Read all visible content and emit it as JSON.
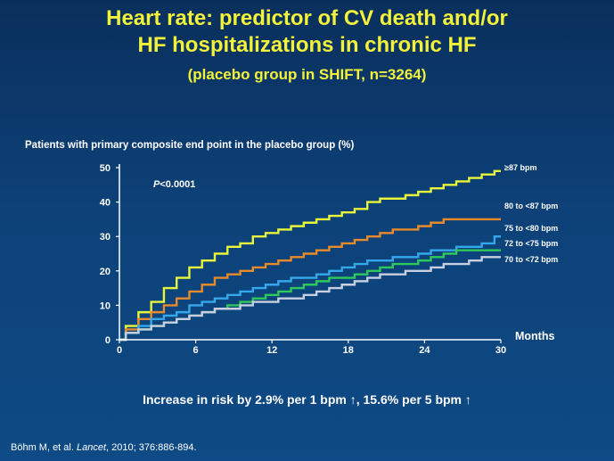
{
  "slide": {
    "title_line1": "Heart rate: predictor of CV death and/or",
    "title_line2": "HF hospitalizations in chronic HF",
    "subtitle": "(placebo group in SHIFT, n=3264)",
    "statement": "Increase in risk by 2.9% per 1 bpm ↑, 15.6% per 5 bpm ↑",
    "citation_authors": "Böhm M, et al. ",
    "citation_journal": "Lancet",
    "citation_rest": ", 2010; 376:886-894."
  },
  "chart_data": {
    "type": "line",
    "ylabel": "Patients with primary composite end point in the placebo group (%)",
    "xlabel": "Months",
    "xlim": [
      0,
      30
    ],
    "ylim": [
      0,
      50
    ],
    "xticks": [
      0,
      6,
      12,
      18,
      24,
      30
    ],
    "yticks": [
      0,
      10,
      20,
      30,
      40,
      50
    ],
    "annotation_prefix": "P",
    "annotation_rest": "<0.0001",
    "series": [
      {
        "name": "≥87 bpm",
        "color": "#e9f53a",
        "x": [
          0,
          1,
          2,
          3,
          4,
          5,
          6,
          7,
          8,
          9,
          10,
          11,
          12,
          13,
          14,
          15,
          16,
          17,
          18,
          19,
          20,
          21,
          22,
          23,
          24,
          25,
          26,
          27,
          28,
          29,
          30
        ],
        "values": [
          0,
          4,
          8,
          11,
          15,
          18,
          21,
          23,
          25,
          27,
          28,
          30,
          31,
          32,
          33,
          34,
          35,
          36,
          37,
          38,
          40,
          41,
          41,
          42,
          43,
          44,
          45,
          46,
          47,
          48,
          49
        ]
      },
      {
        "name": "80 to <87 bpm",
        "color": "#e88a2a",
        "x": [
          0,
          1,
          2,
          3,
          4,
          5,
          6,
          7,
          8,
          9,
          10,
          11,
          12,
          13,
          14,
          15,
          16,
          17,
          18,
          19,
          20,
          21,
          22,
          23,
          24,
          25,
          26,
          27,
          28,
          29,
          30
        ],
        "values": [
          0,
          3,
          6,
          8,
          10,
          12,
          14,
          16,
          18,
          19,
          20,
          21,
          22,
          23,
          24,
          25,
          26,
          27,
          28,
          29,
          30,
          31,
          32,
          32,
          33,
          34,
          35,
          35,
          35,
          35,
          35
        ]
      },
      {
        "name": "75 to <80 bpm",
        "color": "#35a8ec",
        "x": [
          0,
          1,
          2,
          3,
          4,
          5,
          6,
          7,
          8,
          9,
          10,
          11,
          12,
          13,
          14,
          15,
          16,
          17,
          18,
          19,
          20,
          21,
          22,
          23,
          24,
          25,
          26,
          27,
          28,
          29,
          30
        ],
        "values": [
          0,
          2,
          4,
          6,
          7,
          8,
          10,
          11,
          12,
          13,
          14,
          15,
          16,
          17,
          18,
          18,
          19,
          20,
          21,
          22,
          23,
          23,
          24,
          24,
          25,
          26,
          26,
          27,
          27,
          28,
          30
        ]
      },
      {
        "name": "72 to <75 bpm",
        "color": "#2fc85a",
        "x": [
          0,
          1,
          2,
          3,
          4,
          5,
          6,
          7,
          8,
          9,
          10,
          11,
          12,
          13,
          14,
          15,
          16,
          17,
          18,
          19,
          20,
          21,
          22,
          23,
          24,
          25,
          26,
          27,
          28,
          29,
          30
        ],
        "values": [
          0,
          2,
          3,
          4,
          5,
          6,
          7,
          8,
          9,
          10,
          11,
          12,
          13,
          14,
          15,
          16,
          17,
          18,
          18,
          19,
          20,
          21,
          22,
          22,
          23,
          24,
          25,
          26,
          26,
          26,
          26
        ]
      },
      {
        "name": "70 to <72 bpm",
        "color": "#c8cfe0",
        "x": [
          0,
          1,
          2,
          3,
          4,
          5,
          6,
          7,
          8,
          9,
          10,
          11,
          12,
          13,
          14,
          15,
          16,
          17,
          18,
          19,
          20,
          21,
          22,
          23,
          24,
          25,
          26,
          27,
          28,
          29,
          30
        ],
        "values": [
          0,
          2,
          3,
          4,
          5,
          6,
          7,
          8,
          9,
          9,
          10,
          11,
          11,
          12,
          12,
          13,
          14,
          15,
          16,
          17,
          18,
          19,
          19,
          20,
          20,
          21,
          22,
          22,
          23,
          24,
          24
        ]
      }
    ]
  }
}
